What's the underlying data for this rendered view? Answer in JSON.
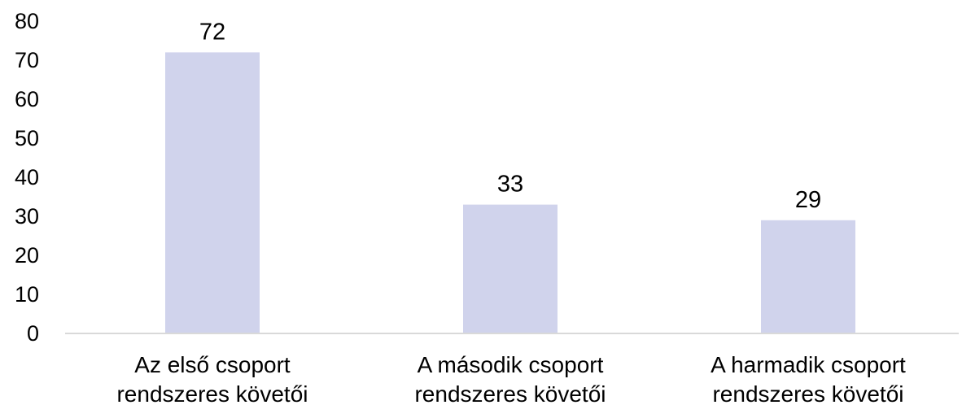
{
  "chart_data": {
    "type": "bar",
    "categories": [
      [
        "Az első csoport",
        "rendszeres követői"
      ],
      [
        "A második csoport",
        "rendszeres követői"
      ],
      [
        "A harmadik csoport",
        "rendszeres követői"
      ]
    ],
    "values": [
      72,
      33,
      29
    ],
    "data_labels": [
      "72",
      "33",
      "29"
    ],
    "yticks": [
      0,
      10,
      20,
      30,
      40,
      50,
      60,
      70,
      80
    ],
    "ytick_labels": [
      "0",
      "10",
      "20",
      "30",
      "40",
      "50",
      "60",
      "70",
      "80"
    ],
    "ylim": [
      0,
      80
    ],
    "title": "",
    "xlabel": "",
    "ylabel": "",
    "grid": false,
    "legend": "none",
    "bar_color": "#d0d3ec",
    "axis_color": "#d9d9d9",
    "text_color": "#000000"
  }
}
